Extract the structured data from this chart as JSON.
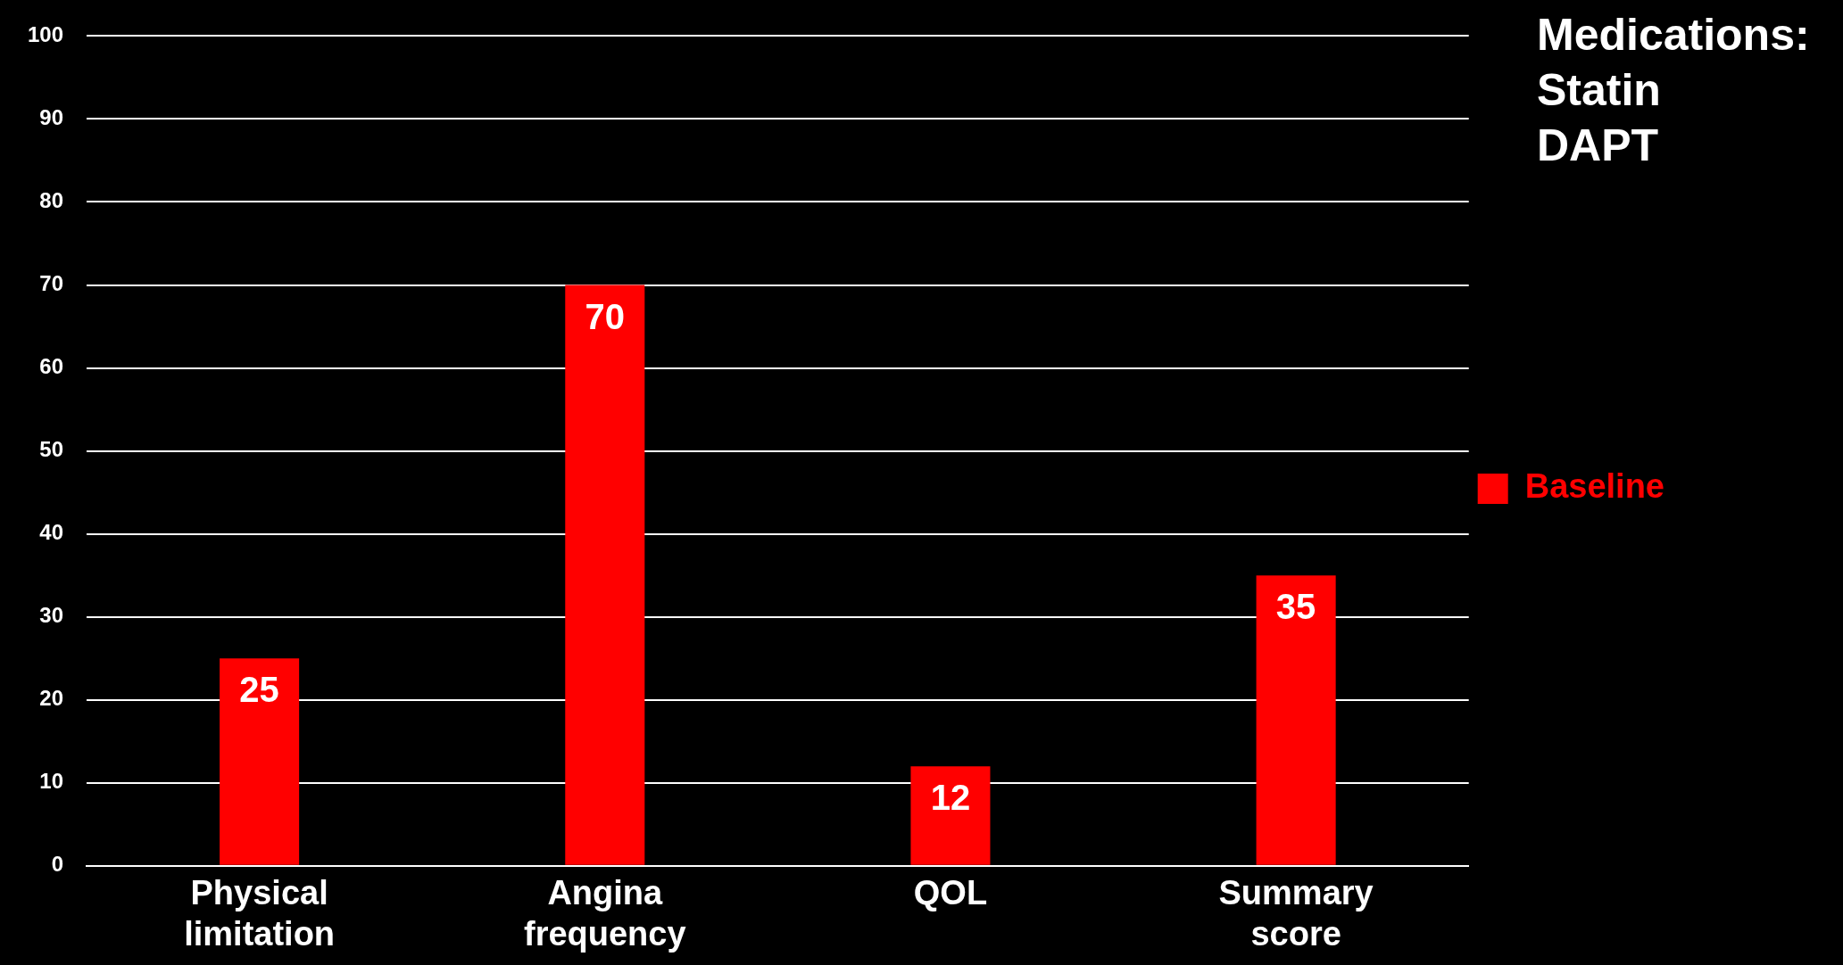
{
  "chart_data": {
    "type": "bar",
    "categories": [
      "Physical limitation",
      "Angina frequency",
      "QOL",
      "Summary score"
    ],
    "series": [
      {
        "name": "Baseline",
        "color": "#ff0000",
        "values": [
          25,
          70,
          12,
          35
        ]
      }
    ],
    "ylim": [
      0,
      100
    ],
    "yticks": [
      0,
      10,
      20,
      30,
      40,
      50,
      60,
      70,
      80,
      90,
      100
    ],
    "grid": "y",
    "legend": "right",
    "data_labels": true,
    "annotations": [
      "Medications:\nStatin\nDAPT"
    ]
  }
}
